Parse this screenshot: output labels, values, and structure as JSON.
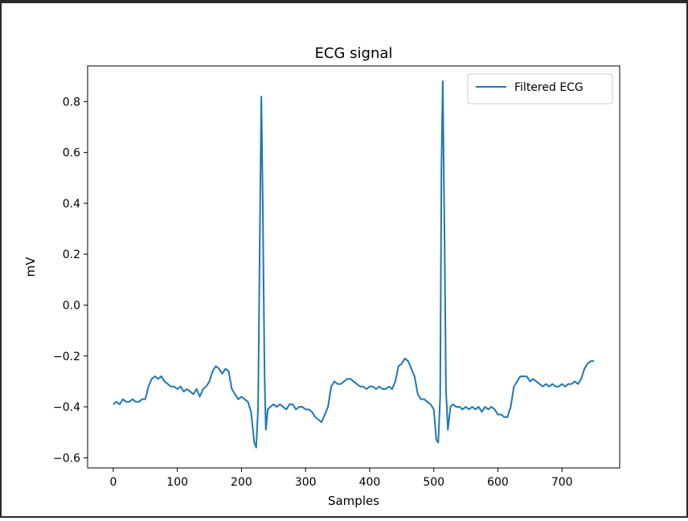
{
  "chart_data": {
    "type": "line",
    "title": "ECG signal",
    "xlabel": "Samples",
    "ylabel": "mV",
    "xlim": [
      -40,
      790
    ],
    "ylim": [
      -0.64,
      0.94
    ],
    "xticks": [
      0,
      100,
      200,
      300,
      400,
      500,
      600,
      700
    ],
    "xtick_labels": [
      "0",
      "100",
      "200",
      "300",
      "400",
      "500",
      "600",
      "700"
    ],
    "yticks": [
      -0.6,
      -0.4,
      -0.2,
      0.0,
      0.2,
      0.4,
      0.6,
      0.8
    ],
    "ytick_labels": [
      "−0.6",
      "−0.4",
      "−0.2",
      "0.0",
      "0.2",
      "0.4",
      "0.6",
      "0.8"
    ],
    "grid": false,
    "legend_position": "top-right",
    "series": [
      {
        "name": "Filtered ECG",
        "color": "#1f77b4",
        "x": [
          0,
          5,
          10,
          15,
          20,
          25,
          30,
          35,
          40,
          45,
          50,
          55,
          60,
          65,
          70,
          75,
          80,
          85,
          90,
          95,
          100,
          105,
          110,
          115,
          120,
          125,
          130,
          135,
          140,
          145,
          150,
          155,
          160,
          165,
          170,
          175,
          180,
          185,
          190,
          195,
          200,
          205,
          210,
          215,
          220,
          223,
          226,
          229,
          231,
          233,
          236,
          238,
          241,
          245,
          250,
          255,
          260,
          265,
          270,
          275,
          280,
          285,
          290,
          295,
          300,
          305,
          310,
          315,
          320,
          325,
          330,
          335,
          340,
          345,
          350,
          355,
          360,
          365,
          370,
          375,
          380,
          385,
          390,
          395,
          400,
          405,
          410,
          415,
          420,
          425,
          430,
          435,
          440,
          445,
          450,
          455,
          460,
          465,
          470,
          475,
          480,
          485,
          490,
          495,
          500,
          504,
          507,
          510,
          512,
          514,
          517,
          519,
          522,
          526,
          530,
          535,
          540,
          545,
          550,
          555,
          560,
          565,
          570,
          575,
          580,
          585,
          590,
          595,
          600,
          605,
          610,
          615,
          620,
          625,
          630,
          635,
          640,
          645,
          650,
          655,
          660,
          665,
          670,
          675,
          680,
          685,
          690,
          695,
          700,
          705,
          710,
          715,
          720,
          725,
          730,
          735,
          740,
          745,
          750
        ],
        "y": [
          -0.39,
          -0.38,
          -0.39,
          -0.37,
          -0.38,
          -0.38,
          -0.37,
          -0.38,
          -0.38,
          -0.37,
          -0.37,
          -0.32,
          -0.29,
          -0.28,
          -0.29,
          -0.28,
          -0.3,
          -0.31,
          -0.32,
          -0.32,
          -0.33,
          -0.32,
          -0.34,
          -0.33,
          -0.34,
          -0.35,
          -0.33,
          -0.36,
          -0.33,
          -0.32,
          -0.3,
          -0.26,
          -0.24,
          -0.25,
          -0.27,
          -0.25,
          -0.26,
          -0.33,
          -0.35,
          -0.37,
          -0.36,
          -0.37,
          -0.38,
          -0.42,
          -0.54,
          -0.56,
          -0.4,
          0.36,
          0.82,
          0.45,
          -0.27,
          -0.49,
          -0.41,
          -0.4,
          -0.39,
          -0.4,
          -0.39,
          -0.4,
          -0.41,
          -0.39,
          -0.39,
          -0.41,
          -0.4,
          -0.4,
          -0.41,
          -0.41,
          -0.42,
          -0.44,
          -0.45,
          -0.46,
          -0.43,
          -0.4,
          -0.32,
          -0.3,
          -0.31,
          -0.31,
          -0.3,
          -0.29,
          -0.29,
          -0.3,
          -0.31,
          -0.32,
          -0.32,
          -0.33,
          -0.32,
          -0.32,
          -0.33,
          -0.32,
          -0.33,
          -0.33,
          -0.32,
          -0.33,
          -0.3,
          -0.24,
          -0.23,
          -0.21,
          -0.22,
          -0.25,
          -0.28,
          -0.35,
          -0.37,
          -0.37,
          -0.38,
          -0.39,
          -0.41,
          -0.53,
          -0.54,
          -0.36,
          0.55,
          0.88,
          0.22,
          -0.33,
          -0.49,
          -0.4,
          -0.39,
          -0.4,
          -0.4,
          -0.41,
          -0.4,
          -0.41,
          -0.4,
          -0.41,
          -0.4,
          -0.42,
          -0.4,
          -0.41,
          -0.4,
          -0.41,
          -0.43,
          -0.43,
          -0.44,
          -0.44,
          -0.4,
          -0.32,
          -0.3,
          -0.28,
          -0.28,
          -0.28,
          -0.3,
          -0.29,
          -0.3,
          -0.31,
          -0.32,
          -0.31,
          -0.32,
          -0.31,
          -0.32,
          -0.32,
          -0.31,
          -0.32,
          -0.31,
          -0.31,
          -0.3,
          -0.31,
          -0.29,
          -0.25,
          -0.23,
          -0.22,
          -0.22
        ]
      }
    ]
  }
}
